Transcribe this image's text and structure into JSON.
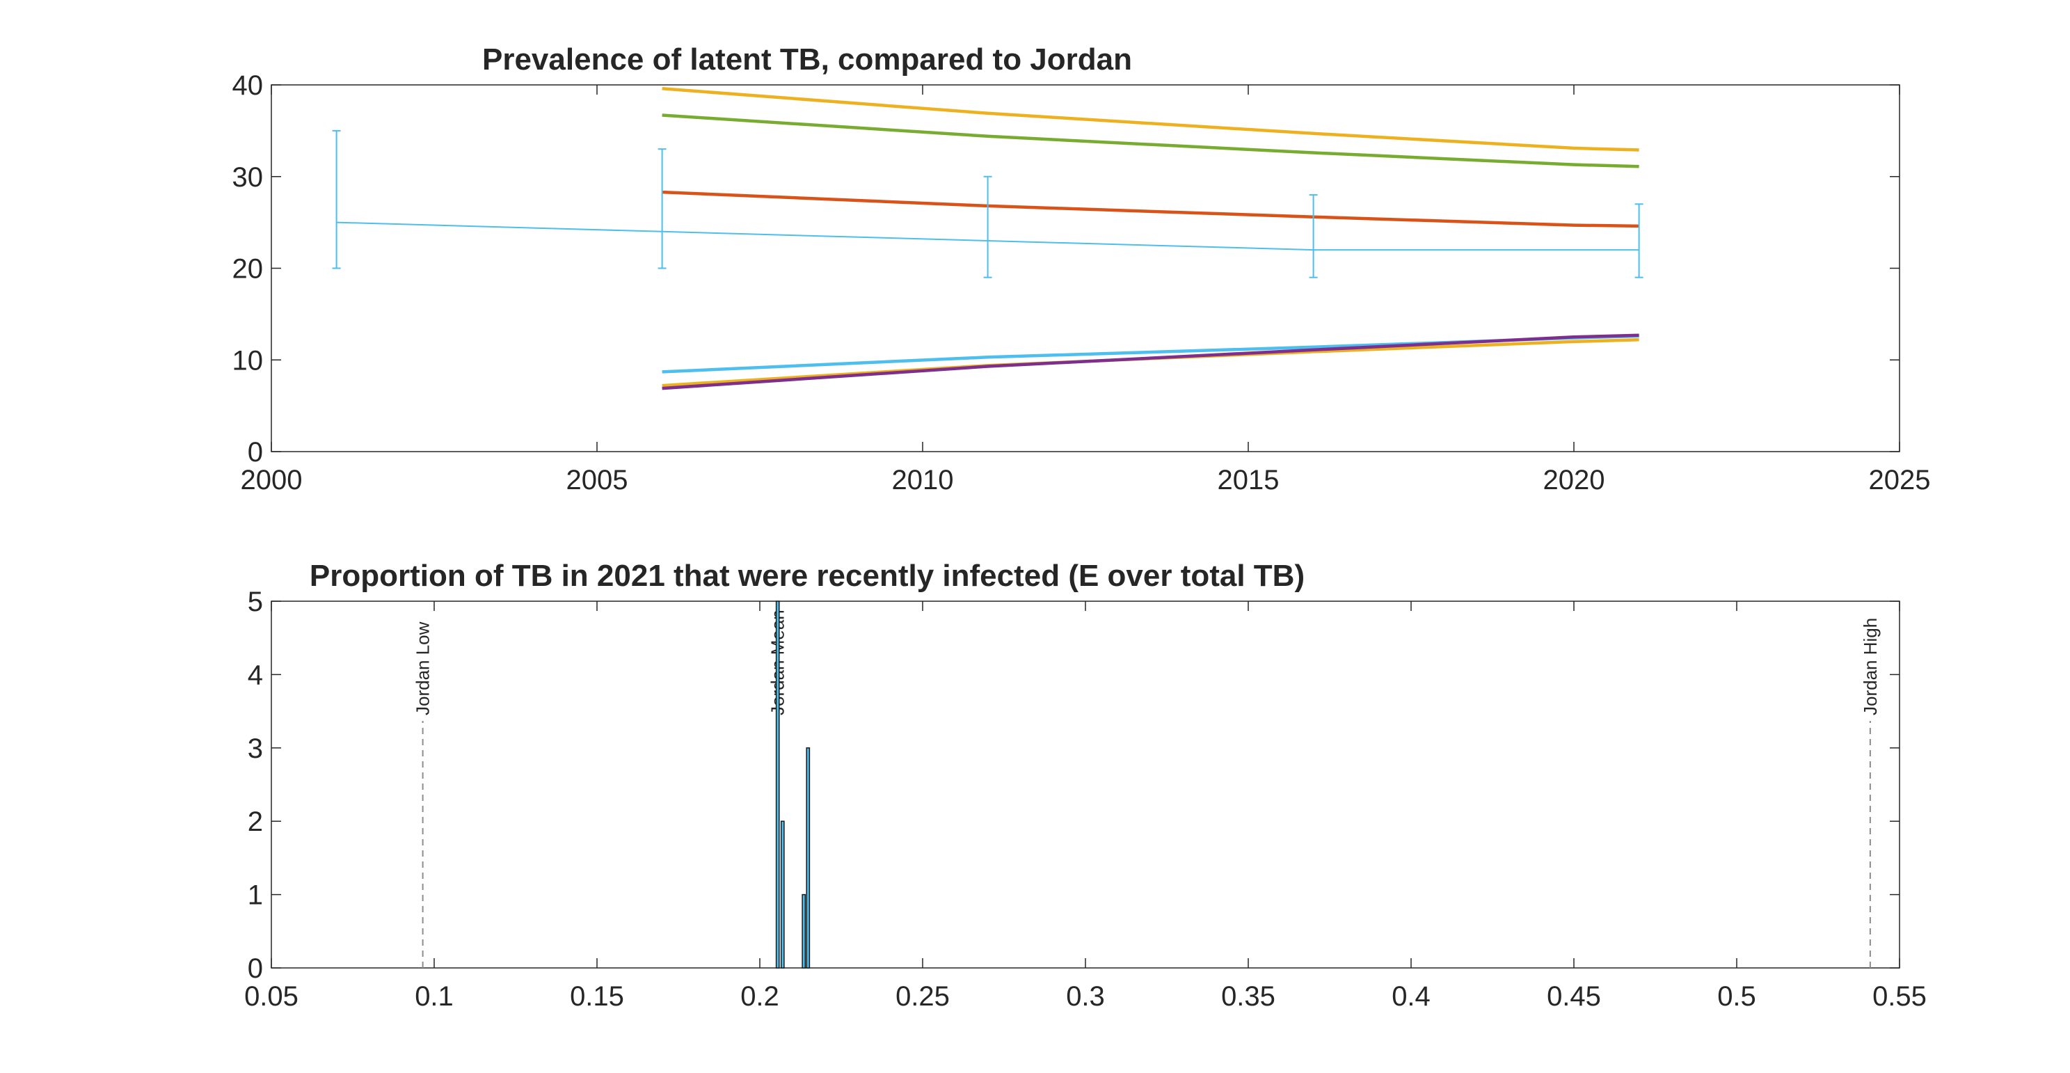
{
  "chart_data": [
    {
      "type": "line",
      "title": "Prevalence of latent TB, compared to Jordan",
      "xlabel": "",
      "ylabel": "",
      "xlim": [
        2000,
        2025
      ],
      "ylim": [
        0,
        40
      ],
      "xticks": [
        2000,
        2005,
        2010,
        2015,
        2020,
        2025
      ],
      "yticks": [
        0,
        10,
        20,
        30,
        40
      ],
      "grid": false,
      "legend": false,
      "data_series": {
        "color": "#4DBEEE",
        "x": [
          2001,
          2006,
          2011,
          2016,
          2021
        ],
        "y": [
          25,
          24,
          23,
          22,
          22
        ],
        "err_low": [
          20,
          20,
          19,
          19,
          19
        ],
        "err_high": [
          35,
          33,
          30,
          28,
          27
        ]
      },
      "series": [
        {
          "color": "#EDB120",
          "x": [
            2006,
            2011,
            2016,
            2020,
            2021
          ],
          "y": [
            39.6,
            36.9,
            34.7,
            33.1,
            32.9
          ]
        },
        {
          "color": "#77AC30",
          "x": [
            2006,
            2011,
            2016,
            2020,
            2021
          ],
          "y": [
            36.7,
            34.4,
            32.6,
            31.3,
            31.1
          ]
        },
        {
          "color": "#D95319",
          "x": [
            2006,
            2011,
            2016,
            2020,
            2021
          ],
          "y": [
            28.3,
            26.8,
            25.6,
            24.7,
            24.6
          ]
        },
        {
          "color": "#4DBEEE",
          "x": [
            2006,
            2011,
            2016,
            2020,
            2021
          ],
          "y": [
            8.7,
            10.3,
            11.4,
            12.4,
            12.6
          ]
        },
        {
          "color": "#EDB120",
          "x": [
            2006,
            2011,
            2016,
            2020,
            2021
          ],
          "y": [
            7.2,
            9.4,
            10.9,
            12.0,
            12.2
          ]
        },
        {
          "color": "#7E2F8E",
          "x": [
            2006,
            2011,
            2016,
            2020,
            2021
          ],
          "y": [
            6.9,
            9.3,
            11.1,
            12.5,
            12.7
          ]
        }
      ]
    },
    {
      "type": "bar",
      "title": "Proportion of TB in 2021 that were recently infected (E over total TB)",
      "xlabel": "",
      "ylabel": "",
      "xlim": [
        0.05,
        0.55
      ],
      "ylim": [
        0,
        5
      ],
      "xticks": [
        0.05,
        0.1,
        0.15,
        0.2,
        0.25,
        0.3,
        0.35,
        0.4,
        0.45,
        0.5,
        0.55
      ],
      "xtick_labels": [
        "0.05",
        "0.1",
        "0.15",
        "0.2",
        "0.25",
        "0.3",
        "0.35",
        "0.4",
        "0.45",
        "0.5",
        "0.55"
      ],
      "yticks": [
        0,
        1,
        2,
        3,
        4,
        5
      ],
      "grid": false,
      "bar_color": "#4DBEEE",
      "bin_width": 0.0009,
      "bins": [
        {
          "x": 0.2055,
          "value": 5
        },
        {
          "x": 0.207,
          "value": 2
        },
        {
          "x": 0.2135,
          "value": 1
        },
        {
          "x": 0.2148,
          "value": 3
        }
      ],
      "reference_lines": [
        {
          "x": 0.0965,
          "label": "Jordan Low"
        },
        {
          "x": 0.2055,
          "label": "Jordan Mean"
        },
        {
          "x": 0.541,
          "label": "Jordan High"
        }
      ]
    }
  ]
}
